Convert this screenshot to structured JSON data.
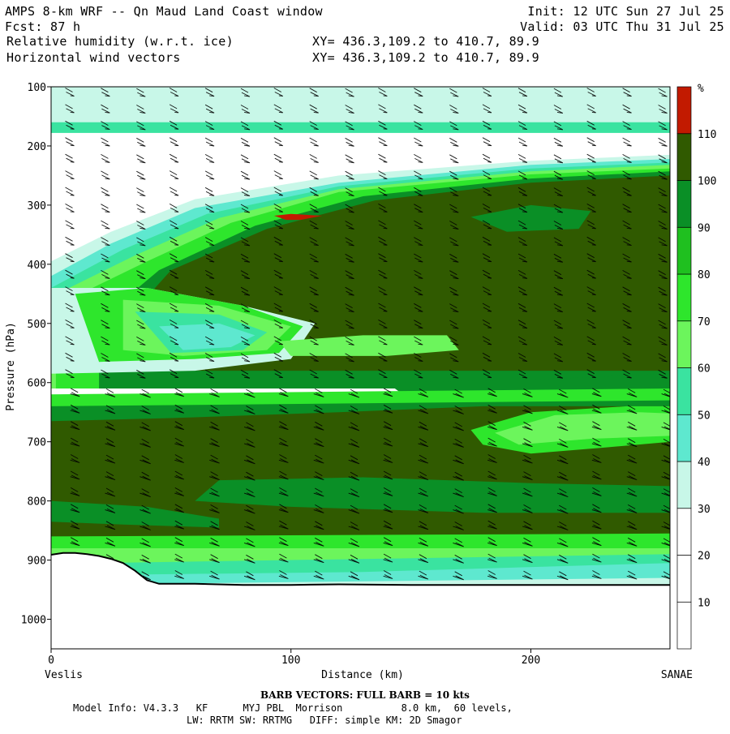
{
  "header": {
    "line1_left": "AMPS 8-km WRF -- Qn Maud Land Coast window",
    "line1_right": "Init: 12 UTC Sun 27 Jul 25",
    "line2_left_label": "Fcst:",
    "line2_left_value": "87 h",
    "line2_right": "Valid: 03 UTC Thu 31 Jul 25",
    "line3_left": "Relative humidity (w.r.t. ice)",
    "line3_right": "XY= 436.3,109.2 to 410.7, 89.9",
    "line4_left": "Horizontal wind vectors",
    "line4_right": "XY= 436.3,109.2 to 410.7, 89.9"
  },
  "footer": {
    "barb_note": "BARB VECTORS:  FULL BARB = 10 kts",
    "model_info_1": "Model Info: V4.3.3   KF      MYJ PBL  Morrison          8.0 km,  60 levels,",
    "model_info_2": "LW: RRTM SW: RRTMG   DIFF: simple KM: 2D Smagor"
  },
  "colors": {
    "c0": "#ffffff",
    "c10": "#ffffff",
    "c20": "#ffffff",
    "c30": "#c8f7e8",
    "c40": "#5ee8cf",
    "c50": "#3ae3a0",
    "c60": "#6cf55c",
    "c70": "#2ee62c",
    "c80": "#1fc01f",
    "c90": "#0a8f26",
    "c100": "#305a00",
    "c110": "#c21a00",
    "terrain": "#000000"
  },
  "chart_data": {
    "type": "heatmap",
    "title": "Relative humidity (w.r.t. ice)",
    "xlabel": "Distance (km)",
    "ylabel": "Pressure (hPa)",
    "x_start_label": "Veslis",
    "x_end_label": "SANAE",
    "xlim": [
      0,
      258
    ],
    "ylim": [
      1050,
      100
    ],
    "x_ticks": [
      0,
      100,
      200
    ],
    "y_ticks": [
      100,
      200,
      300,
      400,
      500,
      600,
      700,
      800,
      900,
      1000
    ],
    "colorbar": {
      "unit": "%",
      "levels": [
        10,
        20,
        30,
        40,
        50,
        60,
        70,
        80,
        90,
        100,
        110
      ],
      "colors": [
        "#ffffff",
        "#ffffff",
        "#ffffff",
        "#c8f7e8",
        "#5ee8cf",
        "#3ae3a0",
        "#6cf55c",
        "#2ee62c",
        "#1fc01f",
        "#0a8f26",
        "#305a00",
        "#c21a00"
      ]
    },
    "terrain_profile": {
      "distance_km": [
        0,
        5,
        10,
        15,
        20,
        25,
        30,
        35,
        40,
        45,
        60,
        80,
        100,
        120,
        150,
        180,
        200,
        220,
        258
      ],
      "pressure_hPa": [
        891,
        888,
        888,
        890,
        893,
        898,
        905,
        918,
        934,
        940,
        940,
        942,
        942,
        941,
        942,
        942,
        942,
        942,
        942
      ]
    },
    "rh_regions_percent": [
      {
        "region": "upper layer 100-180 hPa",
        "rh": 30
      },
      {
        "region": "dry layer 180-240 hPa west",
        "rh": 20
      },
      {
        "region": "moist band 250-600 hPa east of 40 km",
        "rh": 100
      },
      {
        "region": "supersaturated spot near 100 km, 320 hPa",
        "rh": 110
      },
      {
        "region": "dry wedge 450-560 hPa, 0-100 km",
        "rh": 40
      },
      {
        "region": "mid-level band 620-880 hPa",
        "rh": 100
      },
      {
        "region": "near-surface 880-960 hPa",
        "rh": 60
      }
    ],
    "wind_barbs": {
      "full_barb_kts": 10
    }
  }
}
